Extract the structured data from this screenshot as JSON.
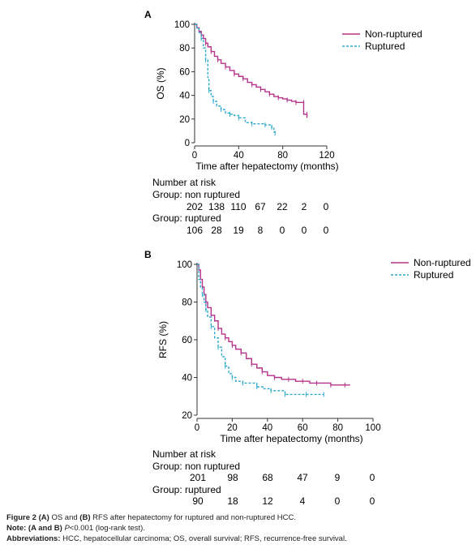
{
  "chart_data": [
    {
      "panel": "A",
      "type": "line",
      "ylabel": "OS (%)",
      "xlabel": "Time after hepatectomy (months)",
      "xlim": [
        0,
        120
      ],
      "ylim": [
        0,
        100
      ],
      "xticks": [
        "0",
        "40",
        "80",
        "120"
      ],
      "yticks": [
        "0",
        "20",
        "40",
        "60",
        "80",
        "100"
      ],
      "legend_position": "top-right",
      "series": [
        {
          "name": "Non-ruptured",
          "color": "#b5338a",
          "dash": "solid",
          "points": [
            [
              0,
              100
            ],
            [
              2,
              97
            ],
            [
              4,
              94
            ],
            [
              6,
              91
            ],
            [
              8,
              88
            ],
            [
              10,
              84
            ],
            [
              12,
              81
            ],
            [
              15,
              77
            ],
            [
              18,
              73
            ],
            [
              21,
              70
            ],
            [
              24,
              67
            ],
            [
              28,
              64
            ],
            [
              32,
              61
            ],
            [
              36,
              58
            ],
            [
              40,
              56
            ],
            [
              44,
              54
            ],
            [
              48,
              51
            ],
            [
              52,
              49
            ],
            [
              56,
              47
            ],
            [
              60,
              45
            ],
            [
              64,
              43
            ],
            [
              68,
              41
            ],
            [
              72,
              39
            ],
            [
              76,
              38
            ],
            [
              80,
              37
            ],
            [
              84,
              36
            ],
            [
              88,
              35
            ],
            [
              92,
              34
            ],
            [
              95,
              34
            ],
            [
              99,
              34
            ],
            [
              99,
              24
            ],
            [
              102,
              24
            ],
            [
              102,
              21
            ]
          ]
        },
        {
          "name": "Ruptured",
          "color": "#2fa8cc",
          "dash": "dashed",
          "points": [
            [
              0,
              100
            ],
            [
              2,
              97
            ],
            [
              4,
              93
            ],
            [
              6,
              88
            ],
            [
              8,
              80
            ],
            [
              10,
              70
            ],
            [
              12,
              55
            ],
            [
              13,
              44
            ],
            [
              15,
              39
            ],
            [
              17,
              35
            ],
            [
              20,
              31
            ],
            [
              24,
              28
            ],
            [
              28,
              25
            ],
            [
              32,
              24
            ],
            [
              36,
              23
            ],
            [
              40,
              21
            ],
            [
              46,
              17
            ],
            [
              52,
              16
            ],
            [
              58,
              16
            ],
            [
              64,
              15
            ],
            [
              68,
              15
            ],
            [
              70,
              13
            ],
            [
              72,
              9
            ],
            [
              73,
              8
            ]
          ]
        }
      ],
      "risk_table": {
        "title": "Number at risk",
        "groups": [
          {
            "label": "Group: non ruptured",
            "values": [
              "202",
              "138",
              "110",
              "67",
              "22",
              "2",
              "0"
            ]
          },
          {
            "label": "Group: ruptured",
            "values": [
              "106",
              "28",
              "19",
              "8",
              "0",
              "0",
              "0"
            ]
          }
        ]
      }
    },
    {
      "panel": "B",
      "type": "line",
      "ylabel": "RFS (%)",
      "xlabel": "Time after hepatectomy (months)",
      "xlim": [
        0,
        100
      ],
      "ylim": [
        20,
        100
      ],
      "xticks": [
        "0",
        "20",
        "40",
        "60",
        "80",
        "100"
      ],
      "yticks": [
        "20",
        "40",
        "60",
        "80",
        "100"
      ],
      "legend_position": "top-right",
      "series": [
        {
          "name": "Non-ruptured",
          "color": "#b5338a",
          "dash": "solid",
          "points": [
            [
              0,
              100
            ],
            [
              1,
              97
            ],
            [
              2,
              92
            ],
            [
              3,
              88
            ],
            [
              4,
              84
            ],
            [
              5,
              80
            ],
            [
              6,
              77
            ],
            [
              8,
              73
            ],
            [
              10,
              70
            ],
            [
              12,
              66
            ],
            [
              14,
              63
            ],
            [
              16,
              61
            ],
            [
              18,
              59
            ],
            [
              20,
              57
            ],
            [
              22,
              55
            ],
            [
              25,
              53
            ],
            [
              28,
              50
            ],
            [
              31,
              47
            ],
            [
              34,
              45
            ],
            [
              37,
              43
            ],
            [
              40,
              41
            ],
            [
              44,
              40
            ],
            [
              48,
              39
            ],
            [
              52,
              39
            ],
            [
              56,
              38
            ],
            [
              60,
              38
            ],
            [
              64,
              37
            ],
            [
              68,
              37
            ],
            [
              72,
              37
            ],
            [
              76,
              36
            ],
            [
              80,
              36
            ],
            [
              84,
              36
            ],
            [
              87,
              36
            ]
          ]
        },
        {
          "name": "Ruptured",
          "color": "#2fa8cc",
          "dash": "dashed",
          "points": [
            [
              0,
              100
            ],
            [
              1,
              92
            ],
            [
              2,
              88
            ],
            [
              3,
              84
            ],
            [
              4,
              80
            ],
            [
              5,
              76
            ],
            [
              6,
              72
            ],
            [
              8,
              67
            ],
            [
              10,
              61
            ],
            [
              12,
              56
            ],
            [
              14,
              51
            ],
            [
              16,
              46
            ],
            [
              18,
              42
            ],
            [
              20,
              40
            ],
            [
              22,
              38
            ],
            [
              26,
              37
            ],
            [
              30,
              37
            ],
            [
              34,
              35
            ],
            [
              38,
              34
            ],
            [
              42,
              33
            ],
            [
              46,
              33
            ],
            [
              50,
              31
            ],
            [
              56,
              31
            ],
            [
              62,
              31
            ],
            [
              68,
              31
            ],
            [
              72,
              31
            ]
          ]
        }
      ],
      "risk_table": {
        "title": "Number at risk",
        "groups": [
          {
            "label": "Group: non ruptured",
            "values": [
              "201",
              "98",
              "68",
              "47",
              "9",
              "0"
            ]
          },
          {
            "label": "Group: ruptured",
            "values": [
              "90",
              "18",
              "12",
              "4",
              "0",
              "0"
            ]
          }
        ]
      }
    }
  ],
  "caption": {
    "figure_label": "Figure 2",
    "figure_text_1": "(A)",
    "figure_text_2": "OS and",
    "figure_text_3": "(B)",
    "figure_text_4": "RFS after hepatectomy for ruptured and non-ruptured HCC.",
    "note_label": "Note:",
    "note_bold": "(A and B)",
    "note_p": "P",
    "note_rest": "<0.001 (log-rank test).",
    "abbrev_label": "Abbreviations:",
    "abbrev_text": "HCC, hepatocellular carcinoma; OS, overall survival; RFS, recurrence-free survival."
  }
}
